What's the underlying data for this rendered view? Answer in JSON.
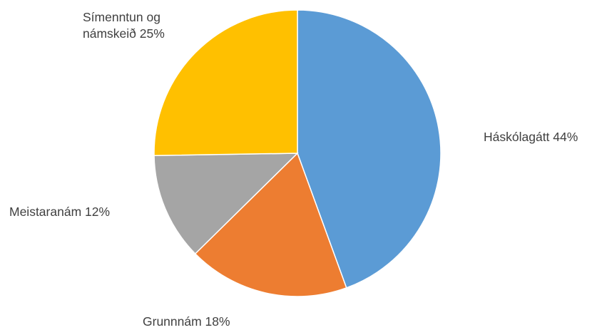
{
  "chart_data": {
    "type": "pie",
    "title": "",
    "categories": [
      "Háskólagátt",
      "Grunnnám",
      "Meistaranám",
      "Símenntun og námskeið"
    ],
    "values": [
      44,
      18,
      12,
      25
    ],
    "unit": "%",
    "data_labels": [
      [
        "Háskólagátt 44%"
      ],
      [
        "Grunnnám 18%"
      ],
      [
        "Meistaranám 12%"
      ],
      [
        "Símenntun og",
        "námskeið 25%"
      ]
    ],
    "colors": [
      "#5B9BD5",
      "#ED7D31",
      "#A5A5A5",
      "#FFC000"
    ],
    "start_angle": "12 o'clock",
    "direction": "clockwise",
    "legend": "none"
  }
}
